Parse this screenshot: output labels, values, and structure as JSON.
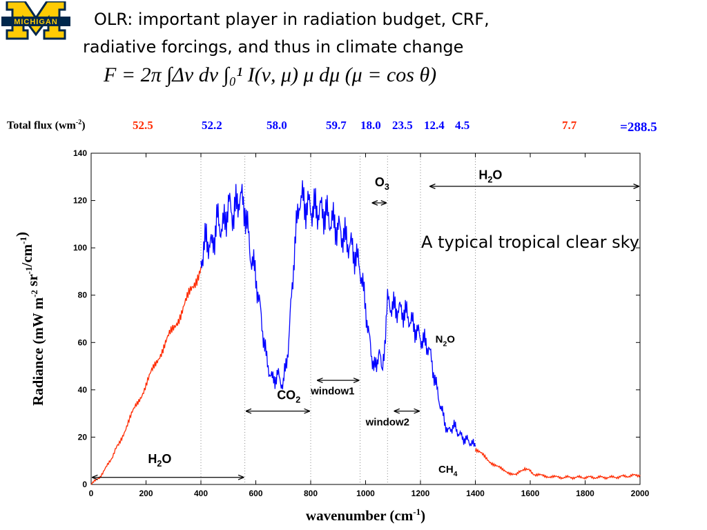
{
  "title_line1": "OLR: important player in radiation budget, CRF,",
  "title_line2": "radiative forcings, and thus in climate change",
  "logo_text": "MICHIGAN",
  "formula_text": "F = 2π ∫Δν dν ∫₀¹ I(ν, μ) μ dμ  (μ = cos θ)",
  "flux": {
    "label": "Total flux (wm",
    "label_sup": "-2",
    "label_end": ")",
    "values": [
      {
        "value": "52.5",
        "color": "red"
      },
      {
        "value": "52.2",
        "color": "blue"
      },
      {
        "value": "58.0",
        "color": "blue"
      },
      {
        "value": "59.7",
        "color": "blue"
      },
      {
        "value": "18.0",
        "color": "blue"
      },
      {
        "value": "23.5",
        "color": "blue"
      },
      {
        "value": "12.4",
        "color": "blue"
      },
      {
        "value": "4.5",
        "color": "blue"
      },
      {
        "value": "7.7",
        "color": "red"
      }
    ],
    "total": "=288.5"
  },
  "colors": {
    "red": "#ff2a00",
    "blue": "#0000ff",
    "logo_blue": "#00274c",
    "logo_maize": "#ffcb05"
  },
  "chart_data": {
    "type": "line",
    "xlabel": "wavenumber (cm-1)",
    "ylabel": "Radiance (mW m-2 sr-1/cm-1)",
    "xlim": [
      0,
      2000
    ],
    "ylim": [
      0,
      140
    ],
    "xticks": [
      0,
      200,
      400,
      600,
      800,
      1000,
      1200,
      1400,
      1600,
      1800,
      2000
    ],
    "yticks": [
      0,
      20,
      40,
      60,
      80,
      100,
      120,
      140
    ],
    "vlines": [
      400,
      560,
      800,
      980,
      1080,
      1200,
      1400
    ],
    "red_segments": [
      {
        "x": [
          0,
          30,
          60,
          100,
          150,
          200,
          250,
          300,
          350,
          400
        ],
        "y": [
          0,
          3,
          8,
          17,
          30,
          42,
          55,
          66,
          78,
          92
        ]
      },
      {
        "x": [
          1400,
          1450,
          1500,
          1550,
          1580,
          1620,
          1700,
          1800,
          1900,
          2000
        ],
        "y": [
          15,
          10,
          6,
          4,
          7,
          4,
          3,
          3,
          3,
          4
        ]
      }
    ],
    "blue_segment": {
      "x": [
        400,
        420,
        440,
        460,
        480,
        500,
        520,
        540,
        560,
        580,
        600,
        620,
        640,
        660,
        680,
        700,
        720,
        740,
        760,
        780,
        800,
        850,
        900,
        950,
        980,
        1000,
        1020,
        1040,
        1050,
        1060,
        1080,
        1100,
        1150,
        1200,
        1230,
        1260,
        1280,
        1300,
        1320,
        1350,
        1380,
        1400
      ],
      "y": [
        95,
        104,
        100,
        112,
        108,
        118,
        114,
        122,
        117,
        98,
        88,
        70,
        52,
        44,
        46,
        42,
        60,
        98,
        122,
        118,
        117,
        115,
        108,
        100,
        92,
        75,
        55,
        48,
        60,
        45,
        77,
        75,
        72,
        62,
        58,
        40,
        30,
        22,
        25,
        20,
        18,
        16
      ]
    },
    "annotations": [
      {
        "text": "H2O",
        "x": 1455,
        "y": 129
      },
      {
        "text": "O3",
        "x": 1060,
        "y": 126
      },
      {
        "text": "A typical tropical clear sky",
        "x": 1600,
        "y": 100
      },
      {
        "text": "N2O",
        "x": 1290,
        "y": 60
      },
      {
        "text": "CO2",
        "x": 720,
        "y": 36
      },
      {
        "text": "window1",
        "x": 880,
        "y": 38
      },
      {
        "text": "window2",
        "x": 1080,
        "y": 25
      },
      {
        "text": "H2O",
        "x": 250,
        "y": 9
      },
      {
        "text": "CH4",
        "x": 1300,
        "y": 5
      }
    ],
    "arrows": [
      {
        "x1": 1230,
        "x2": 2000,
        "y": 126
      },
      {
        "x1": 1020,
        "x2": 1080,
        "y": 119
      },
      {
        "x1": 820,
        "x2": 980,
        "y": 44
      },
      {
        "x1": 560,
        "x2": 800,
        "y": 31
      },
      {
        "x1": 1100,
        "x2": 1200,
        "y": 31
      },
      {
        "x1": 0,
        "x2": 560,
        "y": 3
      }
    ]
  }
}
